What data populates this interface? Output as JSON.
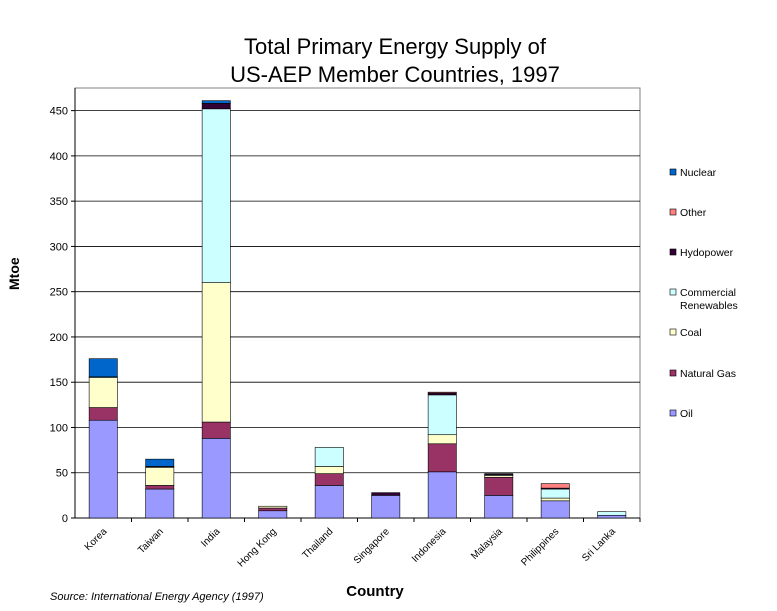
{
  "chart_data": {
    "type": "bar",
    "stacked": true,
    "title_lines": [
      "Total Primary Energy Supply of",
      "US-AEP Member Countries, 1997"
    ],
    "xlabel": "Country",
    "ylabel": "Mtoe",
    "ylim": [
      0,
      475
    ],
    "yticks": [
      0,
      50,
      100,
      150,
      200,
      250,
      300,
      350,
      400,
      450
    ],
    "grid": true,
    "legend_position": "right",
    "source": "Source: International Energy Agency (1997)",
    "categories": [
      "Korea",
      "Taiwan",
      "India",
      "Hong Kong",
      "Thailand",
      "Singapore",
      "Indonesia",
      "Malaysia",
      "Philippines",
      "Sri Lanka"
    ],
    "series": [
      {
        "name": "Oil",
        "color": "#9999ff",
        "values": [
          108,
          32,
          88,
          8,
          36,
          25,
          51,
          25,
          19,
          3
        ]
      },
      {
        "name": "Natural Gas",
        "color": "#993366",
        "values": [
          14,
          4,
          18,
          3,
          13,
          0,
          31,
          20,
          0,
          0
        ]
      },
      {
        "name": "Coal",
        "color": "#ffffcc",
        "values": [
          33,
          20,
          154,
          2,
          8,
          0,
          10,
          2,
          3,
          0
        ]
      },
      {
        "name": "Commercial\nRenewables",
        "color": "#ccffff",
        "values": [
          1,
          0,
          192,
          0,
          21,
          0,
          44,
          1,
          10,
          4
        ]
      },
      {
        "name": "Hydopower",
        "color": "#330033",
        "values": [
          0,
          1,
          6,
          0,
          0,
          3,
          2,
          1,
          1,
          0
        ]
      },
      {
        "name": "Other",
        "color": "#ff8080",
        "values": [
          0,
          0,
          0,
          0,
          0,
          0,
          1,
          0,
          5,
          0
        ]
      },
      {
        "name": "Nuclear",
        "color": "#0066cc",
        "values": [
          20,
          8,
          3,
          0,
          0,
          0,
          0,
          0,
          0,
          0
        ]
      }
    ],
    "legend_order": [
      "Nuclear",
      "Other",
      "Hydopower",
      "Commercial\nRenewables",
      "Coal",
      "Natural Gas",
      "Oil"
    ]
  }
}
